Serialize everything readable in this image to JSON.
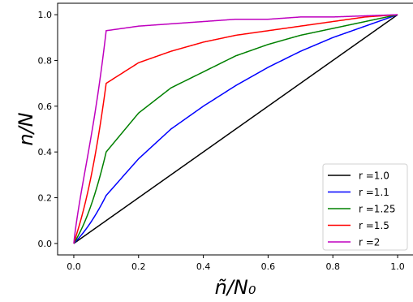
{
  "chart_data": {
    "type": "line",
    "title": "",
    "xlabel": "ñ/N₀",
    "ylabel": "n/N",
    "xlim": [
      -0.05,
      1.05
    ],
    "ylim": [
      -0.05,
      1.05
    ],
    "x_ticks": [
      "0.0",
      "0.2",
      "0.4",
      "0.6",
      "0.8",
      "1.0"
    ],
    "y_ticks": [
      "0.0",
      "0.2",
      "0.4",
      "0.6",
      "0.8",
      "1.0"
    ],
    "grid": false,
    "legend_position": "bottom-right",
    "series": [
      {
        "name": "r =1.0",
        "r": 1.0,
        "color": "#000000",
        "x": [
          0.0,
          0.1,
          0.2,
          0.3,
          0.4,
          0.5,
          0.6,
          0.7,
          0.8,
          0.9,
          1.0
        ],
        "y": [
          0.0,
          0.1,
          0.2,
          0.3,
          0.4,
          0.5,
          0.6,
          0.7,
          0.8,
          0.9,
          1.0
        ]
      },
      {
        "name": "r =1.1",
        "r": 1.1,
        "color": "#0000ff",
        "x": [
          0.0,
          0.1,
          0.2,
          0.3,
          0.4,
          0.5,
          0.6,
          0.7,
          0.8,
          0.9,
          1.0
        ],
        "y": [
          0.0,
          0.21,
          0.37,
          0.5,
          0.6,
          0.69,
          0.77,
          0.84,
          0.9,
          0.95,
          1.0
        ]
      },
      {
        "name": "r =1.25",
        "r": 1.25,
        "color": "#008000",
        "x": [
          0.0,
          0.1,
          0.2,
          0.3,
          0.4,
          0.5,
          0.6,
          0.7,
          0.8,
          0.9,
          1.0
        ],
        "y": [
          0.0,
          0.4,
          0.57,
          0.68,
          0.75,
          0.82,
          0.87,
          0.91,
          0.94,
          0.97,
          1.0
        ]
      },
      {
        "name": "r =1.5",
        "r": 1.5,
        "color": "#ff0000",
        "x": [
          0.0,
          0.1,
          0.2,
          0.3,
          0.4,
          0.5,
          0.6,
          0.7,
          0.8,
          0.9,
          1.0
        ],
        "y": [
          0.0,
          0.7,
          0.79,
          0.84,
          0.88,
          0.91,
          0.93,
          0.95,
          0.97,
          0.99,
          1.0
        ]
      },
      {
        "name": "r =2",
        "r": 2.0,
        "color": "#bf00bf",
        "x": [
          0.0,
          0.1,
          0.2,
          0.3,
          0.4,
          0.5,
          0.6,
          0.7,
          0.8,
          0.9,
          1.0
        ],
        "y": [
          0.0,
          0.93,
          0.95,
          0.96,
          0.97,
          0.98,
          0.98,
          0.99,
          0.99,
          0.995,
          1.0
        ]
      }
    ]
  }
}
